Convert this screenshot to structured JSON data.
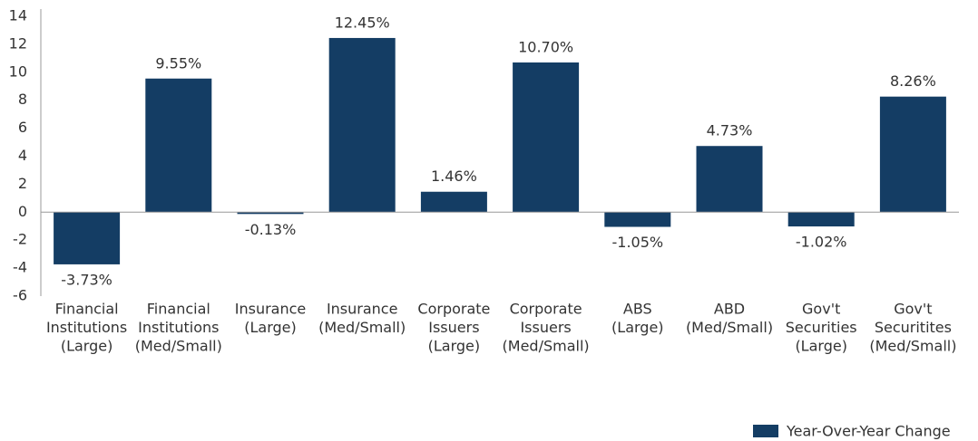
{
  "chart_data": {
    "type": "bar",
    "categories": [
      [
        "Financial",
        "Institutions",
        "(Large)"
      ],
      [
        "Financial",
        "Institutions",
        "(Med/Small)"
      ],
      [
        "Insurance",
        "(Large)"
      ],
      [
        "Insurance",
        "(Med/Small)"
      ],
      [
        "Corporate",
        "Issuers",
        "(Large)"
      ],
      [
        "Corporate",
        "Issuers",
        "(Med/Small)"
      ],
      [
        "ABS",
        "(Large)"
      ],
      [
        "ABD",
        "(Med/Small)"
      ],
      [
        "Gov't",
        "Securities",
        "(Large)"
      ],
      [
        "Gov't",
        "Securitites",
        "(Med/Small)"
      ]
    ],
    "series": [
      {
        "name": "Year-Over-Year Change",
        "color": "#143d64",
        "values": [
          -3.73,
          9.55,
          -0.13,
          12.45,
          1.46,
          10.7,
          -1.05,
          4.73,
          -1.02,
          8.26
        ],
        "value_labels": [
          "-3.73%",
          "9.55%",
          "-0.13%",
          "12.45%",
          "1.46%",
          "10.70%",
          "-1.05%",
          "4.73%",
          "-1.02%",
          "8.26%"
        ]
      }
    ],
    "ylim": [
      -6,
      14
    ],
    "yticks": [
      -6,
      -4,
      -2,
      0,
      2,
      4,
      6,
      8,
      10,
      12,
      14
    ],
    "grid": false,
    "legend": "bottom-right"
  }
}
